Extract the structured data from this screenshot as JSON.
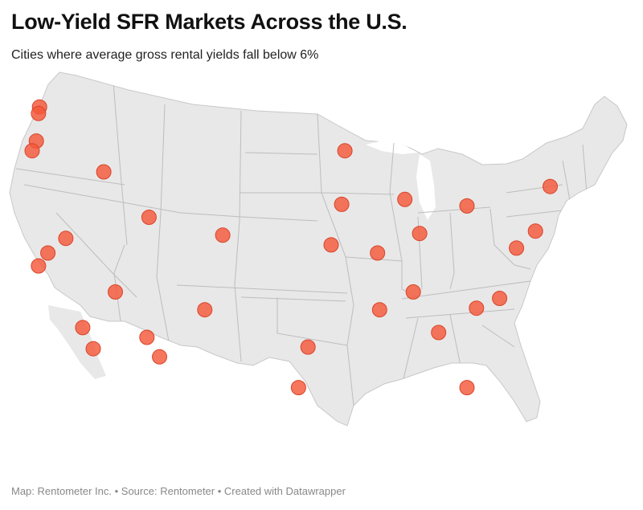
{
  "header": {
    "title": "Low-Yield SFR Markets Across the U.S.",
    "subtitle": "Cities where average gross rental yields fall below 6%"
  },
  "footer": {
    "map_credit": "Map: Rentometer Inc.",
    "source": "Source: Rentometer",
    "created": "Created with Datawrapper",
    "separator": " • "
  },
  "colors": {
    "land": "#e8e8e8",
    "borders": "#bdbdbd",
    "marker": "#f4583a"
  },
  "markers": [
    {
      "lon": -122.3,
      "lat": 47.6
    },
    {
      "lon": -122.4,
      "lat": 47.2
    },
    {
      "lon": -122.6,
      "lat": 45.5
    },
    {
      "lon": -123.0,
      "lat": 44.9
    },
    {
      "lon": -116.2,
      "lat": 43.6
    },
    {
      "lon": -111.9,
      "lat": 40.8
    },
    {
      "lon": -119.8,
      "lat": 39.5
    },
    {
      "lon": -121.5,
      "lat": 38.6
    },
    {
      "lon": -122.4,
      "lat": 37.8
    },
    {
      "lon": -117.2,
      "lat": 32.7
    },
    {
      "lon": -118.2,
      "lat": 34.0
    },
    {
      "lon": -115.1,
      "lat": 36.2
    },
    {
      "lon": -112.1,
      "lat": 33.4
    },
    {
      "lon": -110.9,
      "lat": 32.2
    },
    {
      "lon": -104.9,
      "lat": 39.7
    },
    {
      "lon": -106.6,
      "lat": 35.1
    },
    {
      "lon": -97.7,
      "lat": 30.3
    },
    {
      "lon": -96.8,
      "lat": 32.8
    },
    {
      "lon": -93.3,
      "lat": 44.9
    },
    {
      "lon": -93.6,
      "lat": 41.6
    },
    {
      "lon": -94.6,
      "lat": 39.1
    },
    {
      "lon": -90.2,
      "lat": 38.6
    },
    {
      "lon": -87.6,
      "lat": 41.9
    },
    {
      "lon": -86.2,
      "lat": 39.8
    },
    {
      "lon": -86.8,
      "lat": 36.2
    },
    {
      "lon": -84.4,
      "lat": 33.7
    },
    {
      "lon": -81.7,
      "lat": 30.3
    },
    {
      "lon": -80.8,
      "lat": 35.2
    },
    {
      "lon": -78.6,
      "lat": 35.8
    },
    {
      "lon": -77.0,
      "lat": 38.9
    },
    {
      "lon": -75.2,
      "lat": 39.95
    },
    {
      "lon": -73.8,
      "lat": 42.7
    },
    {
      "lon": -81.7,
      "lat": 41.5
    },
    {
      "lon": -90.0,
      "lat": 35.1
    }
  ]
}
